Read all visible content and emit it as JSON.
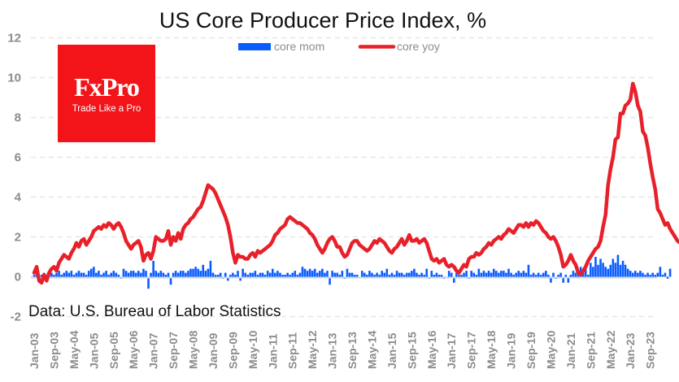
{
  "chart_data": {
    "type": "bar+line",
    "title": "US Core Producer Price Index, %",
    "source_note": "Data: U.S. Bureau of Labor Statistics",
    "xlabel": "",
    "ylabel": "",
    "ylim": [
      -2,
      12
    ],
    "yticks": [
      -2,
      0,
      2,
      4,
      6,
      8,
      10,
      12
    ],
    "grid": true,
    "legend_position": "top-center",
    "x_start": "Jan-03",
    "x_end": "Dec-23",
    "xtick_labels": [
      "Jan-03",
      "Sep-03",
      "May-04",
      "Jan-05",
      "Sep-05",
      "May-06",
      "Jan-07",
      "Sep-07",
      "May-08",
      "Jan-09",
      "Sep-09",
      "May-10",
      "Jan-11",
      "Sep-11",
      "May-12",
      "Jan-13",
      "Sep-13",
      "May-14",
      "Jan-15",
      "Sep-15",
      "May-16",
      "Jan-17",
      "Sep-17",
      "May-18",
      "Jan-19",
      "Sep-19",
      "May-20",
      "Jan-21",
      "Sep-21",
      "May-22",
      "Jan-23",
      "Sep-23"
    ],
    "series": [
      {
        "name": "core mom",
        "kind": "bar",
        "color": "#0b5cff",
        "values": [
          0.1,
          0.2,
          -0.3,
          0.1,
          0.2,
          -0.2,
          0.1,
          0.2,
          0.1,
          0.2,
          0.3,
          0.1,
          0.2,
          0.3,
          0.2,
          0.3,
          0.1,
          0.2,
          0.3,
          0.2,
          0.2,
          0.1,
          0.3,
          0.4,
          0.5,
          0.2,
          0.3,
          0.1,
          0.2,
          0.3,
          0.1,
          0.2,
          0.3,
          0.2,
          0.1,
          -0.1,
          0.4,
          0.3,
          0.2,
          0.3,
          0.3,
          0.2,
          0.3,
          0.2,
          0.4,
          0.3,
          -0.6,
          0.2,
          0.8,
          0.3,
          0.2,
          0.3,
          0.2,
          0.1,
          0.2,
          -0.4,
          0.2,
          0.3,
          0.2,
          0.3,
          0.3,
          0.2,
          0.3,
          0.4,
          0.4,
          0.5,
          0.4,
          0.3,
          0.6,
          0.3,
          0.4,
          0.8,
          0.2,
          0.1,
          0.1,
          0.2,
          -0.1,
          0.2,
          -0.2,
          0.1,
          0.2,
          0.1,
          0.3,
          -0.2,
          0.4,
          0.2,
          0.1,
          0.2,
          0.2,
          0.3,
          0.1,
          0.2,
          0.2,
          0.1,
          0.3,
          0.2,
          0.4,
          0.2,
          0.3,
          0.2,
          0.1,
          0.1,
          0.2,
          0.1,
          0.2,
          0.3,
          0.1,
          0.2,
          0.5,
          0.4,
          0.3,
          0.4,
          0.3,
          0.4,
          0.2,
          0.3,
          0.4,
          0.2,
          0.3,
          -0.4,
          0.3,
          0.2,
          0.2,
          0.1,
          0.3,
          -0.1,
          0.4,
          0.2,
          0.2,
          0.1,
          0.1,
          0.0,
          0.3,
          0.2,
          0.1,
          0.3,
          0.2,
          0.1,
          0.2,
          0.1,
          0.3,
          0.2,
          0.4,
          0.1,
          0.2,
          0.1,
          0.3,
          0.2,
          0.2,
          0.1,
          0.2,
          0.2,
          0.3,
          0.4,
          0.2,
          0.1,
          0.2,
          0.1,
          0.4,
          -0.1,
          0.3,
          0.1,
          0.2,
          0.1,
          0.1,
          -0.1,
          0.0,
          0.3,
          0.2,
          -0.3,
          0.2,
          0.1,
          0.1,
          0.2,
          0.3,
          -0.1,
          0.3,
          0.2,
          0.1,
          0.4,
          0.2,
          0.3,
          0.2,
          0.3,
          0.2,
          0.4,
          0.3,
          0.2,
          0.3,
          0.3,
          0.2,
          0.4,
          0.2,
          0.1,
          0.2,
          0.3,
          0.2,
          0.3,
          0.2,
          0.6,
          0.1,
          0.2,
          0.1,
          0.2,
          0.1,
          0.2,
          0.3,
          0.1,
          -0.3,
          0.2,
          -0.1,
          0.1,
          0.2,
          -0.3,
          0.1,
          -0.3,
          0.1,
          0.3,
          0.2,
          0.2,
          0.5,
          0.3,
          0.6,
          0.1,
          0.7,
          0.5,
          1.0,
          0.6,
          0.9,
          0.7,
          0.5,
          0.4,
          0.6,
          0.9,
          0.7,
          1.1,
          0.6,
          0.8,
          0.6,
          0.4,
          0.3,
          0.2,
          0.3,
          0.2,
          0.3,
          0.2,
          0.1,
          0.2,
          0.1,
          0.2,
          0.1,
          0.2,
          0.5,
          0.1,
          0.2,
          -0.1,
          0.4
        ]
      },
      {
        "name": "core yoy",
        "kind": "line",
        "color": "#e8202a",
        "values": [
          0.2,
          0.5,
          -0.2,
          -0.3,
          0.1,
          -0.2,
          0.2,
          0.4,
          0.5,
          0.3,
          0.7,
          0.9,
          1.1,
          1.0,
          0.9,
          1.2,
          1.4,
          1.7,
          1.5,
          1.8,
          1.9,
          1.6,
          1.8,
          2.0,
          2.3,
          2.4,
          2.5,
          2.4,
          2.6,
          2.5,
          2.7,
          2.6,
          2.4,
          2.6,
          2.7,
          2.5,
          2.2,
          1.8,
          1.6,
          1.4,
          1.6,
          1.7,
          1.8,
          1.5,
          0.8,
          1.1,
          1.2,
          0.9,
          1.3,
          2.0,
          1.9,
          1.8,
          1.8,
          1.9,
          2.3,
          1.6,
          2.0,
          1.8,
          2.2,
          1.9,
          2.4,
          2.6,
          2.7,
          2.9,
          3.0,
          3.2,
          3.4,
          3.5,
          3.8,
          4.2,
          4.6,
          4.5,
          4.4,
          4.2,
          3.9,
          3.6,
          3.3,
          3.0,
          2.6,
          2.0,
          1.2,
          0.7,
          1.1,
          1.0,
          1.0,
          0.9,
          0.9,
          1.1,
          1.2,
          1.0,
          1.3,
          1.2,
          1.3,
          1.4,
          1.5,
          1.6,
          1.8,
          2.1,
          2.2,
          2.4,
          2.5,
          2.6,
          2.9,
          3.0,
          2.9,
          2.8,
          2.7,
          2.7,
          2.6,
          2.5,
          2.4,
          2.2,
          2.1,
          1.9,
          1.6,
          1.4,
          1.2,
          1.4,
          1.7,
          1.9,
          2.0,
          1.8,
          1.5,
          1.5,
          1.2,
          1.0,
          1.1,
          1.4,
          1.7,
          1.8,
          1.8,
          1.6,
          1.5,
          1.4,
          1.3,
          1.4,
          1.6,
          1.8,
          1.7,
          1.9,
          1.8,
          1.7,
          1.5,
          1.3,
          1.2,
          1.4,
          1.5,
          1.7,
          1.9,
          1.6,
          1.8,
          2.1,
          1.8,
          1.8,
          1.9,
          1.7,
          1.8,
          1.9,
          1.7,
          1.3,
          0.9,
          0.8,
          0.9,
          0.7,
          0.8,
          0.9,
          0.6,
          0.5,
          0.6,
          0.5,
          0.3,
          0.2,
          0.4,
          0.6,
          0.5,
          0.9,
          1.0,
          1.0,
          1.2,
          1.1,
          1.2,
          1.4,
          1.5,
          1.7,
          1.6,
          1.8,
          1.9,
          2.0,
          1.9,
          2.1,
          2.2,
          2.4,
          2.3,
          2.2,
          2.4,
          2.6,
          2.6,
          2.5,
          2.7,
          2.5,
          2.7,
          2.6,
          2.8,
          2.7,
          2.5,
          2.3,
          2.2,
          2.0,
          1.9,
          2.0,
          1.8,
          1.5,
          1.1,
          0.5,
          0.6,
          0.8,
          1.1,
          0.8,
          0.6,
          0.2,
          0.1,
          0.3,
          0.5,
          0.8,
          1.0,
          1.2,
          1.4,
          1.5,
          1.8,
          2.5,
          3.1,
          4.6,
          5.4,
          6.0,
          6.9,
          7.0,
          8.2,
          8.2,
          8.6,
          8.7,
          8.9,
          9.7,
          9.3,
          8.6,
          8.3,
          7.3,
          7.1,
          6.5,
          5.7,
          5.0,
          4.4,
          3.4,
          3.2,
          2.9,
          2.6,
          2.7,
          2.4,
          2.2,
          2.0,
          1.8,
          1.7,
          2.0
        ]
      }
    ]
  },
  "branding": {
    "logo_name": "FxPro",
    "logo_tagline": "Trade Like a Pro",
    "logo_color": "#f21418"
  }
}
